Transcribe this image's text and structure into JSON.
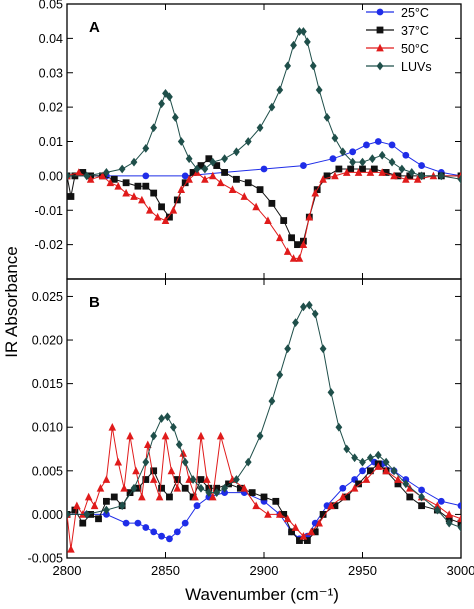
{
  "figure": {
    "ylabel": "IR Absorbance",
    "xlabel": "Wavenumber (cm⁻¹)",
    "xlim": [
      2800,
      3000
    ],
    "xticks": [
      2800,
      2850,
      2900,
      2950,
      3000
    ],
    "xtick_labels": [
      "2800",
      "2850",
      "2900",
      "2950",
      "3000"
    ]
  },
  "legend": {
    "placement": "top-right",
    "entries": [
      {
        "label": "25°C",
        "color": "#1f2de8",
        "marker": "circle"
      },
      {
        "label": "37°C",
        "color": "#111111",
        "marker": "square"
      },
      {
        "label": "50°C",
        "color": "#e01b1b",
        "marker": "triangle"
      },
      {
        "label": "LUVs",
        "color": "#1f4f4a",
        "marker": "diamond"
      }
    ]
  },
  "chart_data": [
    {
      "type": "line",
      "panel_label": "A",
      "xlabel": "Wavenumber (cm⁻¹)",
      "ylabel": "IR Absorbance",
      "xlim": [
        2800,
        3000
      ],
      "ylim": [
        -0.03,
        0.05
      ],
      "yticks": [
        -0.02,
        -0.01,
        0.0,
        0.01,
        0.02,
        0.03,
        0.04,
        0.05
      ],
      "ytick_labels": [
        "-0.02",
        "-0.01",
        "0.00",
        "0.01",
        "0.02",
        "0.03",
        "0.04",
        "0.05"
      ],
      "grid": false,
      "series": [
        {
          "name": "25°C",
          "color": "#1f2de8",
          "marker": "circle",
          "x": [
            2800,
            2820,
            2840,
            2860,
            2880,
            2900,
            2920,
            2935,
            2945,
            2952,
            2958,
            2965,
            2972,
            2980,
            2990,
            3000
          ],
          "y": [
            0.0,
            0.0,
            0.0,
            0.0,
            0.001,
            0.002,
            0.003,
            0.005,
            0.007,
            0.009,
            0.01,
            0.009,
            0.006,
            0.003,
            0.001,
            0.0
          ]
        },
        {
          "name": "37°C",
          "color": "#111111",
          "marker": "square",
          "x": [
            2800,
            2802,
            2804,
            2808,
            2812,
            2818,
            2824,
            2830,
            2836,
            2840,
            2844,
            2848,
            2852,
            2856,
            2860,
            2864,
            2868,
            2872,
            2876,
            2880,
            2886,
            2892,
            2898,
            2904,
            2910,
            2914,
            2917,
            2920,
            2923,
            2927,
            2932,
            2938,
            2944,
            2950,
            2956,
            2962,
            2968,
            2974,
            2980,
            2990,
            3000
          ],
          "y": [
            0.0,
            -0.006,
            0.0,
            0.001,
            0.0,
            0.0,
            -0.001,
            -0.002,
            -0.003,
            -0.003,
            -0.005,
            -0.009,
            -0.012,
            -0.007,
            -0.002,
            0.001,
            0.003,
            0.005,
            0.003,
            0.001,
            -0.001,
            -0.002,
            -0.004,
            -0.008,
            -0.013,
            -0.018,
            -0.02,
            -0.019,
            -0.012,
            -0.004,
            0.0,
            0.002,
            0.002,
            0.002,
            0.002,
            0.001,
            0.0,
            0.0,
            0.0,
            0.0,
            0.0
          ]
        },
        {
          "name": "50°C",
          "color": "#e01b1b",
          "marker": "triangle",
          "x": [
            2800,
            2806,
            2812,
            2818,
            2822,
            2826,
            2830,
            2834,
            2838,
            2842,
            2846,
            2850,
            2854,
            2858,
            2862,
            2866,
            2870,
            2874,
            2878,
            2884,
            2890,
            2896,
            2902,
            2908,
            2912,
            2915,
            2918,
            2920,
            2923,
            2926,
            2930,
            2936,
            2942,
            2948,
            2954,
            2960,
            2966,
            2972,
            2978,
            2986,
            3000
          ],
          "y": [
            0.0,
            0.001,
            -0.001,
            0.0,
            -0.002,
            -0.003,
            -0.005,
            -0.006,
            -0.007,
            -0.01,
            -0.012,
            -0.013,
            -0.01,
            -0.004,
            -0.001,
            0.001,
            -0.001,
            0.0,
            -0.002,
            -0.004,
            -0.006,
            -0.009,
            -0.013,
            -0.018,
            -0.022,
            -0.024,
            -0.024,
            -0.02,
            -0.012,
            -0.005,
            -0.001,
            0.0,
            0.001,
            0.001,
            0.001,
            0.001,
            0.0,
            -0.001,
            -0.001,
            0.0,
            0.0
          ]
        },
        {
          "name": "LUVs",
          "color": "#1f4f4a",
          "marker": "diamond",
          "x": [
            2800,
            2810,
            2820,
            2828,
            2834,
            2840,
            2844,
            2848,
            2850,
            2852,
            2855,
            2858,
            2862,
            2866,
            2870,
            2874,
            2880,
            2886,
            2892,
            2898,
            2904,
            2908,
            2912,
            2915,
            2918,
            2920,
            2922,
            2925,
            2928,
            2932,
            2936,
            2940,
            2945,
            2950,
            2955,
            2960,
            2965,
            2970,
            2975,
            2980,
            2990,
            3000
          ],
          "y": [
            0.0,
            0.0,
            0.001,
            0.002,
            0.004,
            0.008,
            0.014,
            0.021,
            0.024,
            0.023,
            0.017,
            0.01,
            0.005,
            0.002,
            0.002,
            0.004,
            0.005,
            0.007,
            0.01,
            0.014,
            0.02,
            0.025,
            0.032,
            0.038,
            0.042,
            0.042,
            0.039,
            0.032,
            0.025,
            0.017,
            0.011,
            0.007,
            0.004,
            0.004,
            0.005,
            0.006,
            0.004,
            0.002,
            0.001,
            0.0,
            0.0,
            -0.001
          ]
        }
      ]
    },
    {
      "type": "line",
      "panel_label": "B",
      "xlabel": "Wavenumber (cm⁻¹)",
      "ylabel": "IR Absorbance",
      "xlim": [
        2800,
        3000
      ],
      "ylim": [
        -0.005,
        0.027
      ],
      "yticks": [
        -0.005,
        0.0,
        0.005,
        0.01,
        0.015,
        0.02,
        0.025
      ],
      "ytick_labels": [
        "-0.005",
        "0.000",
        "0.005",
        "0.010",
        "0.015",
        "0.020",
        "0.025"
      ],
      "grid": false,
      "series": [
        {
          "name": "25°C",
          "color": "#1f2de8",
          "marker": "circle",
          "x": [
            2800,
            2810,
            2820,
            2830,
            2836,
            2840,
            2844,
            2848,
            2852,
            2856,
            2860,
            2866,
            2872,
            2880,
            2890,
            2900,
            2908,
            2914,
            2918,
            2922,
            2926,
            2932,
            2940,
            2946,
            2950,
            2956,
            2960,
            2966,
            2972,
            2980,
            2990,
            3000
          ],
          "y": [
            0.0,
            0.0,
            0.0,
            -0.001,
            -0.001,
            -0.0015,
            -0.002,
            -0.0025,
            -0.0028,
            -0.002,
            -0.001,
            0.001,
            0.002,
            0.0025,
            0.0025,
            0.0015,
            0.0,
            -0.002,
            -0.0028,
            -0.0025,
            -0.001,
            0.001,
            0.003,
            0.004,
            0.005,
            0.006,
            0.0058,
            0.005,
            0.004,
            0.0028,
            0.0015,
            0.001
          ]
        },
        {
          "name": "37°C",
          "color": "#111111",
          "marker": "square",
          "x": [
            2800,
            2804,
            2808,
            2812,
            2816,
            2820,
            2824,
            2828,
            2832,
            2836,
            2840,
            2844,
            2848,
            2852,
            2856,
            2860,
            2864,
            2868,
            2872,
            2876,
            2882,
            2888,
            2894,
            2900,
            2906,
            2910,
            2914,
            2918,
            2922,
            2926,
            2930,
            2936,
            2942,
            2948,
            2954,
            2958,
            2962,
            2968,
            2974,
            2980,
            2988,
            2994,
            3000
          ],
          "y": [
            0.0,
            0.0005,
            -0.001,
            0.0,
            -0.0005,
            0.0015,
            0.002,
            0.001,
            0.0025,
            0.003,
            0.004,
            0.005,
            0.003,
            0.002,
            0.004,
            0.003,
            0.002,
            0.004,
            0.003,
            0.003,
            0.0035,
            0.003,
            0.0025,
            0.002,
            0.0015,
            0.0,
            -0.002,
            -0.003,
            -0.003,
            -0.002,
            0.0,
            0.001,
            0.002,
            0.0035,
            0.005,
            0.0058,
            0.005,
            0.0035,
            0.002,
            0.001,
            0.0005,
            -0.0005,
            -0.001
          ]
        },
        {
          "name": "50°C",
          "color": "#e01b1b",
          "marker": "triangle",
          "x": [
            2800,
            2802,
            2805,
            2808,
            2811,
            2814,
            2817,
            2820,
            2823,
            2826,
            2829,
            2832,
            2835,
            2838,
            2841,
            2844,
            2847,
            2850,
            2853,
            2856,
            2859,
            2862,
            2865,
            2868,
            2871,
            2874,
            2878,
            2884,
            2890,
            2896,
            2902,
            2908,
            2912,
            2916,
            2920,
            2924,
            2928,
            2934,
            2940,
            2946,
            2952,
            2958,
            2962,
            2968,
            2974,
            2980,
            2988,
            2994,
            3000
          ],
          "y": [
            0.0,
            -0.004,
            0.001,
            0.0,
            0.002,
            0.001,
            0.003,
            0.004,
            0.01,
            0.006,
            0.003,
            0.009,
            0.005,
            0.002,
            0.008,
            0.004,
            0.002,
            0.009,
            0.005,
            0.003,
            0.007,
            0.004,
            0.002,
            0.009,
            0.004,
            0.002,
            0.009,
            0.004,
            0.003,
            0.001,
            0.0,
            0.0,
            -0.0005,
            -0.0015,
            -0.0025,
            -0.002,
            -0.001,
            0.001,
            0.002,
            0.003,
            0.004,
            0.0055,
            0.005,
            0.004,
            0.003,
            0.002,
            0.001,
            0.0,
            -0.0005
          ]
        },
        {
          "name": "LUVs",
          "color": "#1f4f4a",
          "marker": "diamond",
          "x": [
            2800,
            2810,
            2820,
            2828,
            2834,
            2840,
            2844,
            2848,
            2851,
            2854,
            2857,
            2860,
            2864,
            2868,
            2872,
            2876,
            2880,
            2886,
            2892,
            2898,
            2904,
            2908,
            2912,
            2916,
            2920,
            2923,
            2926,
            2930,
            2934,
            2938,
            2942,
            2946,
            2950,
            2954,
            2958,
            2962,
            2966,
            2972,
            2980,
            2988,
            2994,
            3000
          ],
          "y": [
            0.0,
            0.0,
            0.0005,
            0.001,
            0.003,
            0.006,
            0.009,
            0.011,
            0.0112,
            0.01,
            0.008,
            0.006,
            0.004,
            0.003,
            0.0025,
            0.0025,
            0.003,
            0.004,
            0.006,
            0.009,
            0.013,
            0.016,
            0.019,
            0.022,
            0.0238,
            0.024,
            0.023,
            0.019,
            0.014,
            0.01,
            0.0075,
            0.0065,
            0.006,
            0.0065,
            0.0068,
            0.006,
            0.005,
            0.0035,
            0.002,
            0.0005,
            -0.001,
            -0.0015
          ]
        }
      ]
    }
  ]
}
